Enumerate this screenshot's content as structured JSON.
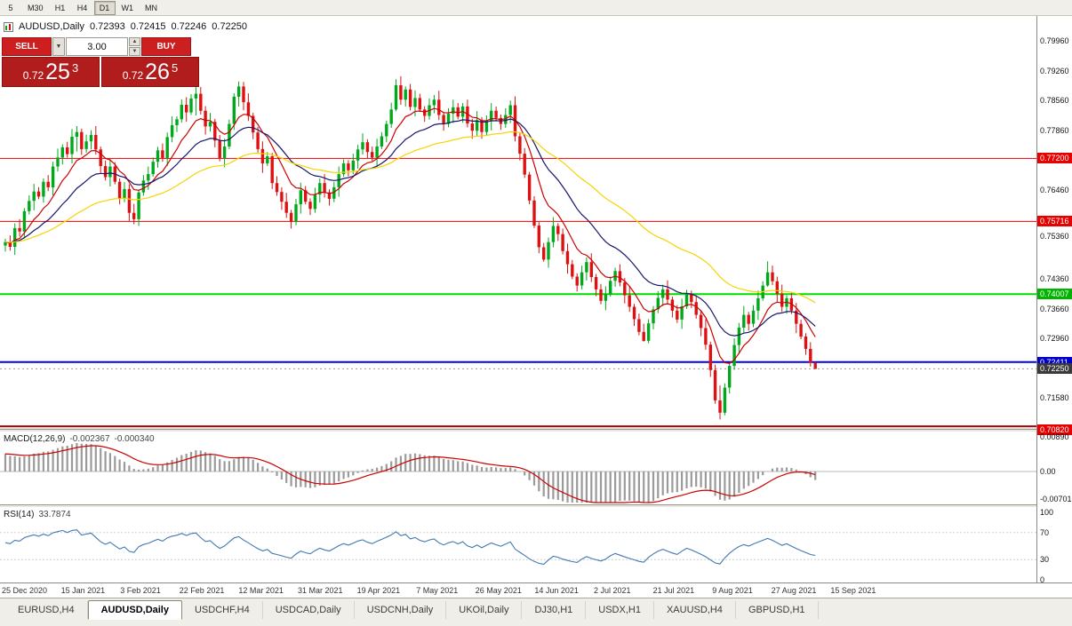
{
  "toolbar": {
    "timeframes": [
      "5",
      "M30",
      "H1",
      "H4",
      "D1",
      "W1",
      "MN"
    ],
    "active_timeframe": "D1"
  },
  "chart_header": {
    "symbol_title": "AUDUSD,Daily",
    "ohlc": {
      "open": "0.72393",
      "high": "0.72415",
      "low": "0.72246",
      "close": "0.72250"
    }
  },
  "trade_panel": {
    "sell_label": "SELL",
    "buy_label": "BUY",
    "volume": "3.00",
    "bid": {
      "prefix": "0.72",
      "big": "25",
      "sup": "3",
      "full": "0.72253"
    },
    "ask": {
      "prefix": "0.72",
      "big": "26",
      "sup": "5",
      "full": "0.72265"
    }
  },
  "icons": {
    "dropdown": "▼",
    "spin_up": "▲",
    "spin_down": "▼"
  },
  "price_axis": {
    "plain_labels": [
      0.7996,
      0.7926,
      0.7856,
      0.7786,
      0.7646,
      0.7536,
      0.7436,
      0.7366,
      0.7296,
      0.7158
    ],
    "format_decimals": 5
  },
  "levels": [
    {
      "price": 0.772,
      "label": "0.77200",
      "color": "#ee0000",
      "chip_bg": "#e60000",
      "width": 1
    },
    {
      "price": 0.75716,
      "label": "0.75716",
      "color": "#ee0000",
      "chip_bg": "#e60000",
      "width": 1
    },
    {
      "price": 0.74007,
      "label": "0.74007",
      "color": "#00dc00",
      "chip_bg": "#00b400",
      "width": 2
    },
    {
      "price": 0.72411,
      "label": "0.72411",
      "color": "#0000e6",
      "chip_bg": "#0000cc",
      "width": 2
    },
    {
      "price": 0.709,
      "label": null,
      "color": "#aa0000",
      "chip_bg": null,
      "width": 2
    },
    {
      "price": 0.7082,
      "label": "0.70820",
      "color": "#1c1c80",
      "chip_bg": "#e60000",
      "width": 2
    }
  ],
  "current_price": {
    "value": 0.7225,
    "label": "0.72250",
    "chip_bg": "#3a3a3a",
    "line_color": "#999999"
  },
  "time_axis": [
    "25 Dec 2020",
    "15 Jan 2021",
    "3 Feb 2021",
    "22 Feb 2021",
    "12 Mar 2021",
    "31 Mar 2021",
    "19 Apr 2021",
    "7 May 2021",
    "26 May 2021",
    "14 Jun 2021",
    "2 Jul 2021",
    "21 Jul 2021",
    "9 Aug 2021",
    "27 Aug 2021",
    "15 Sep 2021"
  ],
  "macd_panel": {
    "name": "MACD(12,26,9)",
    "value_main": "-0.002367",
    "value_signal": "-0.000340",
    "params": {
      "fast": 12,
      "slow": 26,
      "signal": 9
    },
    "axis": [
      {
        "label": "0.00890",
        "value": 0.0089
      },
      {
        "label": "0.00",
        "value": 0
      },
      {
        "label": "-0.00701",
        "value": -0.00701
      }
    ],
    "histogram_color": "#9a9a9a",
    "signal_color": "#cc0000"
  },
  "rsi_panel": {
    "name": "RSI(14)",
    "value": "33.7874",
    "period": 14,
    "axis": [
      {
        "label": "100",
        "value": 100
      },
      {
        "label": "70",
        "value": 70
      },
      {
        "label": "30",
        "value": 30
      },
      {
        "label": "0",
        "value": 0
      }
    ],
    "levels": [
      70,
      30
    ],
    "line_color": "#4178b0"
  },
  "bottom_tabs": {
    "items": [
      "EURUSD,H4",
      "AUDUSD,Daily",
      "USDCHF,H4",
      "USDCAD,Daily",
      "USDCNH,Daily",
      "UKOil,Daily",
      "DJ30,H1",
      "USDX,H1",
      "XAUUSD,H4",
      "GBPUSD,H1"
    ],
    "active_index": 1
  },
  "chart_data": {
    "type": "candlestick",
    "title": "AUDUSD,Daily",
    "symbol": "AUDUSD",
    "timeframe": "Daily",
    "x_start_label": "25 Dec 2020",
    "x_end_label": "15 Sep 2021",
    "price_range": {
      "top": 0.8034,
      "bottom": 0.7086
    },
    "first_open": 0.7515,
    "closes": [
      0.7523,
      0.7512,
      0.7556,
      0.7548,
      0.7596,
      0.762,
      0.7642,
      0.763,
      0.7665,
      0.7652,
      0.7701,
      0.7722,
      0.7746,
      0.773,
      0.7771,
      0.7782,
      0.7742,
      0.776,
      0.7775,
      0.7741,
      0.7702,
      0.7676,
      0.7701,
      0.7665,
      0.7626,
      0.7648,
      0.7592,
      0.7577,
      0.764,
      0.7668,
      0.7683,
      0.7712,
      0.7739,
      0.7721,
      0.777,
      0.7798,
      0.7812,
      0.7846,
      0.7828,
      0.7861,
      0.7872,
      0.7832,
      0.7795,
      0.7806,
      0.7762,
      0.7721,
      0.7748,
      0.7801,
      0.7865,
      0.7889,
      0.7852,
      0.782,
      0.7781,
      0.7742,
      0.7708,
      0.7725,
      0.7662,
      0.7641,
      0.7618,
      0.7592,
      0.7571,
      0.7612,
      0.7645,
      0.7618,
      0.7601,
      0.7635,
      0.7662,
      0.764,
      0.7625,
      0.7652,
      0.7683,
      0.7708,
      0.7692,
      0.7715,
      0.7741,
      0.7758,
      0.7735,
      0.7722,
      0.7748,
      0.7772,
      0.7801,
      0.7835,
      0.7892,
      0.7858,
      0.7882,
      0.7841,
      0.7862,
      0.7835,
      0.782,
      0.7845,
      0.7858,
      0.7822,
      0.7801,
      0.7825,
      0.784,
      0.7818,
      0.7842,
      0.7802,
      0.7785,
      0.781,
      0.7782,
      0.7808,
      0.7832,
      0.7815,
      0.7801,
      0.7822,
      0.7845,
      0.7772,
      0.7731,
      0.7682,
      0.7621,
      0.7562,
      0.7511,
      0.7482,
      0.7523,
      0.7561,
      0.7542,
      0.7502,
      0.7471,
      0.7442,
      0.7421,
      0.7452,
      0.7476,
      0.7441,
      0.7412,
      0.7385,
      0.7401,
      0.7432,
      0.7455,
      0.7428,
      0.7398,
      0.7371,
      0.7342,
      0.7312,
      0.7291,
      0.7332,
      0.7365,
      0.7392,
      0.7412,
      0.7388,
      0.7362,
      0.7341,
      0.7372,
      0.7401,
      0.7382,
      0.7352,
      0.7321,
      0.7282,
      0.7222,
      0.7151,
      0.7122,
      0.7181,
      0.7232,
      0.7281,
      0.7322,
      0.7352,
      0.7331,
      0.7362,
      0.7391,
      0.7421,
      0.7452,
      0.7431,
      0.7402,
      0.7371,
      0.7391,
      0.7362,
      0.7331,
      0.7301,
      0.7272,
      0.72393,
      0.7225
    ],
    "wick_overrides": {
      "15": [
        0.7796,
        0.7736
      ],
      "40": [
        0.7888,
        0.7821
      ],
      "49": [
        0.7901,
        0.7842
      ],
      "82": [
        0.7906,
        0.7831
      ],
      "110": [
        0.7688,
        0.7612
      ],
      "113": [
        0.7521,
        0.7477
      ],
      "134": [
        0.7331,
        0.7289
      ],
      "150": [
        0.7186,
        0.7106
      ],
      "160": [
        0.7478,
        0.7418
      ],
      "170": [
        0.72415,
        0.72246
      ]
    },
    "ma_lines": [
      {
        "period": 9,
        "color": "#cc0000"
      },
      {
        "period": 21,
        "color": "#16166b"
      },
      {
        "period": 50,
        "color": "#f5d400"
      }
    ],
    "up_color": "#00a81c",
    "down_color": "#dd1111"
  }
}
